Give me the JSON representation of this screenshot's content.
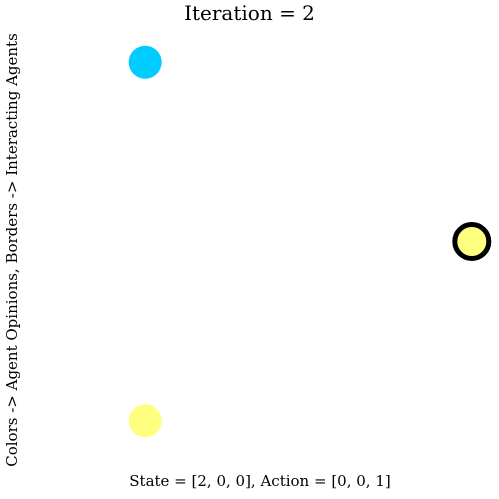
{
  "chart_data": {
    "type": "scatter",
    "title": "Iteration = 2",
    "xlabel": "State = [2, 0, 0], Action = [0, 0, 1]",
    "ylabel": "Colors -> Agent Opinions, Borders -> Interacting Agents",
    "grid": false,
    "legend": "none",
    "points": [
      {
        "agent": 0,
        "x": -0.5,
        "y": 0.866,
        "opinion": 2,
        "color": "#00ccff",
        "interacting": false
      },
      {
        "agent": 1,
        "x": 1.0,
        "y": 0.0,
        "opinion": 0,
        "color": "#ffff7f",
        "interacting": true
      },
      {
        "agent": 2,
        "x": -0.5,
        "y": -0.866,
        "opinion": 0,
        "color": "#ffff7f",
        "interacting": false
      }
    ],
    "xlim": [
      -1.13,
      1.07
    ],
    "ylim": [
      -1.07,
      1.07
    ]
  }
}
